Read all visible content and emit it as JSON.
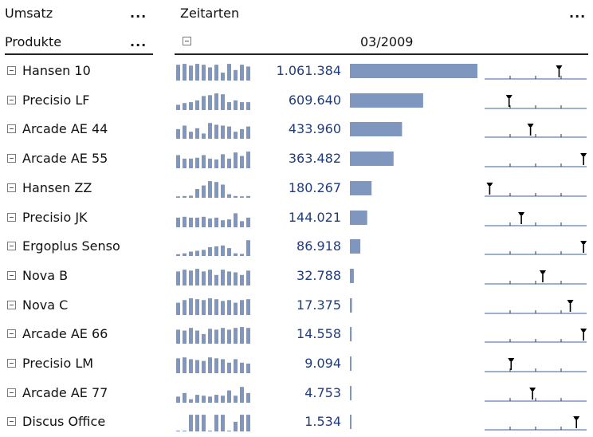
{
  "header": {
    "measure_label": "Umsatz",
    "measure_menu": "...",
    "dimension_label": "Produkte",
    "dimension_menu": "...",
    "time_label": "Zeitarten",
    "time_menu": "...",
    "period": "03/2009"
  },
  "colors": {
    "bar": "#7f96bf",
    "value_text": "#1f3c80",
    "marker": "#000000"
  },
  "chart_data": {
    "type": "bar",
    "categories": [
      "Hansen 10",
      "Precisio LF",
      "Arcade AE 44",
      "Arcade AE 55",
      "Hansen ZZ",
      "Precisio JK",
      "Ergoplus Senso",
      "Nova B",
      "Nova C",
      "Arcade AE 66",
      "Precisio LM",
      "Arcade AE 77",
      "Discus Office"
    ],
    "values": [
      1061384,
      609640,
      433960,
      363482,
      180267,
      144021,
      86918,
      32788,
      17375,
      14558,
      9094,
      4753,
      1534
    ],
    "value_labels": [
      "1.061.384",
      "609.640",
      "433.960",
      "363.482",
      "180.267",
      "144.021",
      "86.918",
      "32.788",
      "17.375",
      "14.558",
      "9.094",
      "4.753",
      "1.534"
    ],
    "xlim": [
      0,
      1061384
    ],
    "sparklines": [
      [
        0.9,
        0.95,
        0.85,
        0.95,
        0.9,
        0.75,
        0.9,
        0.45,
        0.95,
        0.6,
        0.9,
        0.8
      ],
      [
        0.3,
        0.4,
        0.45,
        0.55,
        0.8,
        0.85,
        0.95,
        0.9,
        0.45,
        0.55,
        0.45,
        0.45
      ],
      [
        0.55,
        0.75,
        0.4,
        0.6,
        0.3,
        0.9,
        0.8,
        0.75,
        0.7,
        0.4,
        0.55,
        0.7
      ],
      [
        0.75,
        0.55,
        0.55,
        0.6,
        0.75,
        0.55,
        0.5,
        0.8,
        0.55,
        0.9,
        0.7,
        0.95
      ],
      [
        0.08,
        0.1,
        0.12,
        0.5,
        0.7,
        0.95,
        0.9,
        0.75,
        0.2,
        0.1,
        0.08,
        0.1
      ],
      [
        0.55,
        0.6,
        0.55,
        0.55,
        0.6,
        0.5,
        0.55,
        0.4,
        0.45,
        0.8,
        0.35,
        0.55
      ],
      [
        0.1,
        0.15,
        0.25,
        0.3,
        0.35,
        0.5,
        0.55,
        0.6,
        0.45,
        0.15,
        0.12,
        0.9
      ],
      [
        0.8,
        0.9,
        0.85,
        0.95,
        0.8,
        0.9,
        0.6,
        0.9,
        0.8,
        0.75,
        0.6,
        0.85
      ],
      [
        0.7,
        0.85,
        0.95,
        0.9,
        0.85,
        0.95,
        0.9,
        0.8,
        0.85,
        0.7,
        0.85,
        0.9
      ],
      [
        0.8,
        0.75,
        0.9,
        0.75,
        0.55,
        0.85,
        0.8,
        0.9,
        0.8,
        0.9,
        0.95,
        0.9
      ],
      [
        0.85,
        0.9,
        0.8,
        0.75,
        0.7,
        0.9,
        0.85,
        0.8,
        0.6,
        0.8,
        0.6,
        0.55
      ],
      [
        0.35,
        0.55,
        0.2,
        0.45,
        0.4,
        0.35,
        0.45,
        0.4,
        0.7,
        0.4,
        0.9,
        0.55
      ],
      [
        0.0,
        0.0,
        0.95,
        0.95,
        0.95,
        0.0,
        0.95,
        0.95,
        0.0,
        0.55,
        0.95,
        0.95
      ]
    ],
    "marker_positions": [
      0.73,
      0.24,
      0.45,
      0.97,
      0.05,
      0.36,
      0.97,
      0.57,
      0.84,
      0.97,
      0.26,
      0.47,
      0.9
    ]
  }
}
